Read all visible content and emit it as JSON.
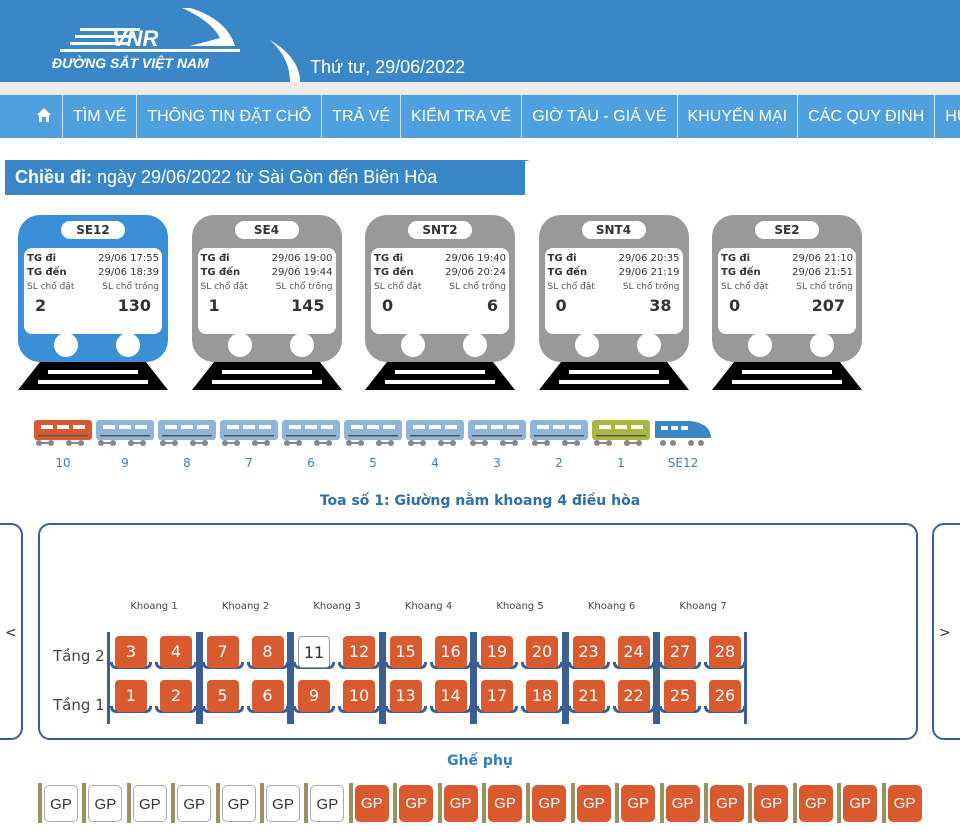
{
  "header": {
    "brand_logo_text": "VNR",
    "brand_name": "ĐƯỜNG SẮT VIỆT NAM",
    "date": "Thứ tư, 29/06/2022",
    "color": "#3a87c8"
  },
  "nav": {
    "home_icon": "home-icon",
    "items": [
      "TÌM VÉ",
      "THÔNG TIN ĐẶT CHỖ",
      "TRẢ VÉ",
      "KIỂM TRA VÉ",
      "GIỜ TÀU - GIÁ VÉ",
      "KHUYẾN MẠI",
      "CÁC QUY ĐỊNH",
      "HƯỚ"
    ]
  },
  "heading": {
    "label": "Chiều đi:",
    "text": " ngày 29/06/2022 từ Sài Gòn đến Biên Hòa"
  },
  "labels": {
    "depart": "TG đi",
    "arrive": "TG đến",
    "booked": "SL chổ đặt",
    "free": "SL chổ trống"
  },
  "trains": [
    {
      "name": "SE12",
      "depart": "29/06 17:55",
      "arrive": "29/06 18:39",
      "booked": "2",
      "free": "130",
      "selected": true
    },
    {
      "name": "SE4",
      "depart": "29/06 19:00",
      "arrive": "29/06 19:44",
      "booked": "1",
      "free": "145",
      "selected": false
    },
    {
      "name": "SNT2",
      "depart": "29/06 19:40",
      "arrive": "29/06 20:24",
      "booked": "0",
      "free": "6",
      "selected": false
    },
    {
      "name": "SNT4",
      "depart": "29/06 20:35",
      "arrive": "29/06 21:19",
      "booked": "0",
      "free": "38",
      "selected": false
    },
    {
      "name": "SE2",
      "depart": "29/06 21:10",
      "arrive": "29/06 21:51",
      "booked": "0",
      "free": "207",
      "selected": false
    }
  ],
  "cars": [
    {
      "label": "10",
      "state": "orange"
    },
    {
      "label": "9",
      "state": "normal"
    },
    {
      "label": "8",
      "state": "normal"
    },
    {
      "label": "7",
      "state": "normal"
    },
    {
      "label": "6",
      "state": "normal"
    },
    {
      "label": "5",
      "state": "normal"
    },
    {
      "label": "4",
      "state": "normal"
    },
    {
      "label": "3",
      "state": "normal"
    },
    {
      "label": "2",
      "state": "normal"
    },
    {
      "label": "1",
      "state": "selected"
    },
    {
      "label": "SE12",
      "state": "engine"
    }
  ],
  "colors": {
    "car_orange": "#d9582f",
    "car_normal": "#8fb6d8",
    "car_selected": "#a8b840",
    "engine": "#3a87c8",
    "seat_taken": "#d95a2f",
    "train_selected": "#3a8fd6",
    "train_other": "#999999"
  },
  "coach": {
    "title": "Toa số 1: Giường nằm khoang 4 điều hòa",
    "prev": "<",
    "next": ">",
    "floors": [
      "Tầng 2",
      "Tầng 1"
    ],
    "compartments": [
      {
        "name": "Khoang 1",
        "upper": [
          {
            "n": "3",
            "taken": true
          },
          {
            "n": "4",
            "taken": true
          }
        ],
        "lower": [
          {
            "n": "1",
            "taken": true
          },
          {
            "n": "2",
            "taken": true
          }
        ]
      },
      {
        "name": "Khoang 2",
        "upper": [
          {
            "n": "7",
            "taken": true
          },
          {
            "n": "8",
            "taken": true
          }
        ],
        "lower": [
          {
            "n": "5",
            "taken": true
          },
          {
            "n": "6",
            "taken": true
          }
        ]
      },
      {
        "name": "Khoang 3",
        "upper": [
          {
            "n": "11",
            "taken": false
          },
          {
            "n": "12",
            "taken": true
          }
        ],
        "lower": [
          {
            "n": "9",
            "taken": true
          },
          {
            "n": "10",
            "taken": true
          }
        ]
      },
      {
        "name": "Khoang 4",
        "upper": [
          {
            "n": "15",
            "taken": true
          },
          {
            "n": "16",
            "taken": true
          }
        ],
        "lower": [
          {
            "n": "13",
            "taken": true
          },
          {
            "n": "14",
            "taken": true
          }
        ]
      },
      {
        "name": "Khoang 5",
        "upper": [
          {
            "n": "19",
            "taken": true
          },
          {
            "n": "20",
            "taken": true
          }
        ],
        "lower": [
          {
            "n": "17",
            "taken": true
          },
          {
            "n": "18",
            "taken": true
          }
        ]
      },
      {
        "name": "Khoang 6",
        "upper": [
          {
            "n": "23",
            "taken": true
          },
          {
            "n": "24",
            "taken": true
          }
        ],
        "lower": [
          {
            "n": "21",
            "taken": true
          },
          {
            "n": "22",
            "taken": true
          }
        ]
      },
      {
        "name": "Khoang 7",
        "upper": [
          {
            "n": "27",
            "taken": true
          },
          {
            "n": "28",
            "taken": true
          }
        ],
        "lower": [
          {
            "n": "25",
            "taken": true
          },
          {
            "n": "26",
            "taken": true
          }
        ]
      }
    ]
  },
  "extra": {
    "title": "Ghế phụ",
    "label": "GP",
    "taken": [
      false,
      false,
      false,
      false,
      false,
      false,
      false,
      true,
      true,
      true,
      true,
      true,
      true,
      true,
      true,
      true,
      true,
      true,
      true,
      true
    ]
  }
}
